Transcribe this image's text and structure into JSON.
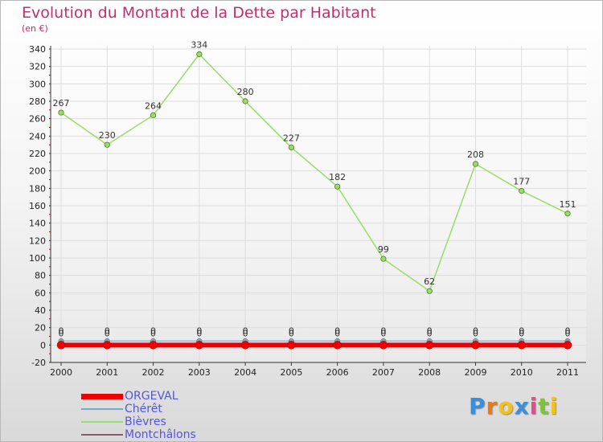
{
  "chart_data": {
    "type": "line",
    "title": "Evolution du Montant de la Dette par Habitant",
    "subtitle": "(en €)",
    "x": [
      "2000",
      "2001",
      "2002",
      "2003",
      "2004",
      "2005",
      "2006",
      "2007",
      "2008",
      "2009",
      "2010",
      "2011"
    ],
    "ylim": [
      -20,
      340
    ],
    "yticks": [
      -20,
      0,
      20,
      40,
      60,
      80,
      100,
      120,
      140,
      160,
      180,
      200,
      220,
      240,
      260,
      280,
      300,
      320,
      340
    ],
    "grid": true,
    "legend_position": "bottom-left",
    "series": [
      {
        "name": "ORGEVAL",
        "color": "#ee0000",
        "values": [
          0,
          0,
          0,
          0,
          0,
          0,
          0,
          0,
          0,
          0,
          0,
          0
        ],
        "labels": [
          "",
          "",
          "",
          "",
          "",
          "",
          "",
          "",
          "",
          "",
          "",
          ""
        ]
      },
      {
        "name": "Chérêt",
        "color": "#7aa7c9",
        "values": [
          0,
          0,
          0,
          0,
          0,
          0,
          0,
          0,
          0,
          0,
          0,
          0
        ],
        "labels": [
          "0",
          "0",
          "0",
          "0",
          "0",
          "0",
          "0",
          "0",
          "0",
          "0",
          "0",
          "0"
        ]
      },
      {
        "name": "Bièvres",
        "color": "#99dd66",
        "values": [
          267,
          230,
          264,
          334,
          280,
          227,
          182,
          99,
          62,
          208,
          177,
          151
        ],
        "labels": [
          "267",
          "230",
          "264",
          "334",
          "280",
          "227",
          "182",
          "99",
          "62",
          "208",
          "177",
          "151"
        ]
      },
      {
        "name": "Montchâlons",
        "color": "#8a5a6a",
        "values": [
          0,
          0,
          0,
          0,
          0,
          0,
          0,
          0,
          0,
          0,
          0,
          0
        ],
        "labels": [
          "0",
          "0",
          "0",
          "0",
          "0",
          "0",
          "0",
          "0",
          "0",
          "0",
          "0",
          "0"
        ]
      }
    ]
  },
  "brand": {
    "letters": [
      "P",
      "r",
      "o",
      "x",
      "i",
      "t",
      "i"
    ],
    "colors": [
      "#3a8fd8",
      "#e87a1a",
      "#f2c21a",
      "#3a8fd8",
      "#e84a8a",
      "#7fc241",
      "#f2c21a"
    ]
  }
}
